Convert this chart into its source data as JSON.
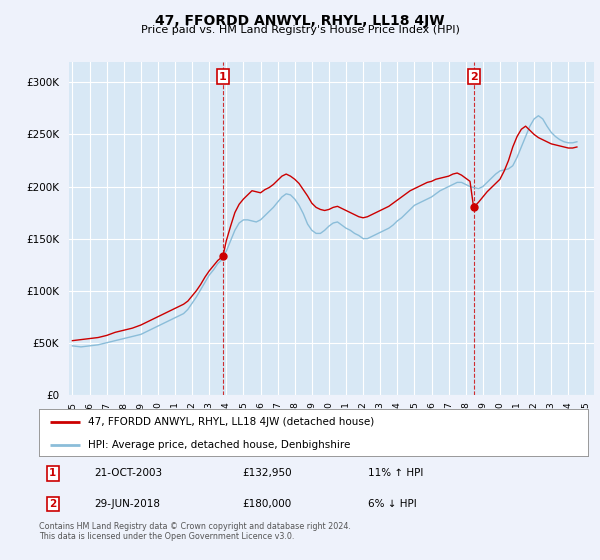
{
  "title": "47, FFORDD ANWYL, RHYL, LL18 4JW",
  "subtitle": "Price paid vs. HM Land Registry's House Price Index (HPI)",
  "background_color": "#eef2fb",
  "plot_bg_color": "#d8e8f5",
  "grid_color": "#ffffff",
  "legend_entry1": "47, FFORDD ANWYL, RHYL, LL18 4JW (detached house)",
  "legend_entry2": "HPI: Average price, detached house, Denbighshire",
  "line1_color": "#cc0000",
  "line2_color": "#8bbdd9",
  "sale1_x": 2003.8,
  "sale1_y": 132950,
  "sale1_date_str": "21-OCT-2003",
  "sale1_price_str": "£132,950",
  "sale1_hpi_diff": "11% ↑ HPI",
  "sale2_x": 2018.46,
  "sale2_y": 180000,
  "sale2_date_str": "29-JUN-2018",
  "sale2_price_str": "£180,000",
  "sale2_hpi_diff": "6% ↓ HPI",
  "vline_color": "#cc0000",
  "annotation_box_color": "#cc0000",
  "ylim": [
    0,
    320000
  ],
  "yticks": [
    0,
    50000,
    100000,
    150000,
    200000,
    250000,
    300000
  ],
  "xlim_start": 1994.8,
  "xlim_end": 2025.5,
  "footer": "Contains HM Land Registry data © Crown copyright and database right 2024.\nThis data is licensed under the Open Government Licence v3.0.",
  "hpi_years": [
    1995.0,
    1995.25,
    1995.5,
    1995.75,
    1996.0,
    1996.25,
    1996.5,
    1996.75,
    1997.0,
    1997.25,
    1997.5,
    1997.75,
    1998.0,
    1998.25,
    1998.5,
    1998.75,
    1999.0,
    1999.25,
    1999.5,
    1999.75,
    2000.0,
    2000.25,
    2000.5,
    2000.75,
    2001.0,
    2001.25,
    2001.5,
    2001.75,
    2002.0,
    2002.25,
    2002.5,
    2002.75,
    2003.0,
    2003.25,
    2003.5,
    2003.75,
    2004.0,
    2004.25,
    2004.5,
    2004.75,
    2005.0,
    2005.25,
    2005.5,
    2005.75,
    2006.0,
    2006.25,
    2006.5,
    2006.75,
    2007.0,
    2007.25,
    2007.5,
    2007.75,
    2008.0,
    2008.25,
    2008.5,
    2008.75,
    2009.0,
    2009.25,
    2009.5,
    2009.75,
    2010.0,
    2010.25,
    2010.5,
    2010.75,
    2011.0,
    2011.25,
    2011.5,
    2011.75,
    2012.0,
    2012.25,
    2012.5,
    2012.75,
    2013.0,
    2013.25,
    2013.5,
    2013.75,
    2014.0,
    2014.25,
    2014.5,
    2014.75,
    2015.0,
    2015.25,
    2015.5,
    2015.75,
    2016.0,
    2016.25,
    2016.5,
    2016.75,
    2017.0,
    2017.25,
    2017.5,
    2017.75,
    2018.0,
    2018.25,
    2018.5,
    2018.75,
    2019.0,
    2019.25,
    2019.5,
    2019.75,
    2020.0,
    2020.25,
    2020.5,
    2020.75,
    2021.0,
    2021.25,
    2021.5,
    2021.75,
    2022.0,
    2022.25,
    2022.5,
    2022.75,
    2023.0,
    2023.25,
    2023.5,
    2023.75,
    2024.0,
    2024.25,
    2024.5
  ],
  "hpi_values": [
    47000,
    46500,
    46000,
    46500,
    47000,
    47500,
    48000,
    49000,
    50000,
    51000,
    52000,
    53000,
    54000,
    55000,
    56000,
    57000,
    58000,
    60000,
    62000,
    64000,
    66000,
    68000,
    70000,
    72000,
    74000,
    76000,
    78000,
    82000,
    88000,
    94000,
    101000,
    108000,
    115000,
    120000,
    126000,
    130000,
    138000,
    148000,
    158000,
    165000,
    168000,
    168000,
    167000,
    166000,
    168000,
    172000,
    176000,
    180000,
    185000,
    190000,
    193000,
    192000,
    188000,
    182000,
    174000,
    164000,
    158000,
    155000,
    155000,
    158000,
    162000,
    165000,
    166000,
    163000,
    160000,
    158000,
    155000,
    153000,
    150000,
    150000,
    152000,
    154000,
    156000,
    158000,
    160000,
    163000,
    167000,
    170000,
    174000,
    178000,
    182000,
    184000,
    186000,
    188000,
    190000,
    193000,
    196000,
    198000,
    200000,
    202000,
    204000,
    204000,
    202000,
    200000,
    199000,
    198000,
    200000,
    204000,
    208000,
    212000,
    215000,
    216000,
    217000,
    220000,
    228000,
    238000,
    248000,
    258000,
    265000,
    268000,
    265000,
    258000,
    252000,
    248000,
    245000,
    243000,
    242000,
    242000,
    243000
  ],
  "price_years": [
    1995.0,
    1995.25,
    1995.5,
    1995.75,
    1996.0,
    1996.25,
    1996.5,
    1996.75,
    1997.0,
    1997.25,
    1997.5,
    1997.75,
    1998.0,
    1998.25,
    1998.5,
    1998.75,
    1999.0,
    1999.25,
    1999.5,
    1999.75,
    2000.0,
    2000.25,
    2000.5,
    2000.75,
    2001.0,
    2001.25,
    2001.5,
    2001.75,
    2002.0,
    2002.25,
    2002.5,
    2002.75,
    2003.0,
    2003.25,
    2003.5,
    2003.8,
    2004.0,
    2004.25,
    2004.5,
    2004.75,
    2005.0,
    2005.25,
    2005.5,
    2005.75,
    2006.0,
    2006.25,
    2006.5,
    2006.75,
    2007.0,
    2007.25,
    2007.5,
    2007.75,
    2008.0,
    2008.25,
    2008.5,
    2008.75,
    2009.0,
    2009.25,
    2009.5,
    2009.75,
    2010.0,
    2010.25,
    2010.5,
    2010.75,
    2011.0,
    2011.25,
    2011.5,
    2011.75,
    2012.0,
    2012.25,
    2012.5,
    2012.75,
    2013.0,
    2013.25,
    2013.5,
    2013.75,
    2014.0,
    2014.25,
    2014.5,
    2014.75,
    2015.0,
    2015.25,
    2015.5,
    2015.75,
    2016.0,
    2016.25,
    2016.5,
    2016.75,
    2017.0,
    2017.25,
    2017.5,
    2017.75,
    2018.0,
    2018.25,
    2018.46,
    2018.75,
    2019.0,
    2019.25,
    2019.5,
    2019.75,
    2020.0,
    2020.25,
    2020.5,
    2020.75,
    2021.0,
    2021.25,
    2021.5,
    2021.75,
    2022.0,
    2022.25,
    2022.5,
    2022.75,
    2023.0,
    2023.25,
    2023.5,
    2023.75,
    2024.0,
    2024.25,
    2024.5
  ],
  "price_values": [
    52000,
    52500,
    53000,
    53500,
    54000,
    54500,
    55000,
    56000,
    57000,
    58500,
    60000,
    61000,
    62000,
    63000,
    64000,
    65500,
    67000,
    69000,
    71000,
    73000,
    75000,
    77000,
    79000,
    81000,
    83000,
    85000,
    87000,
    90000,
    95000,
    100000,
    106000,
    113000,
    119000,
    124000,
    129000,
    132950,
    148000,
    162000,
    175000,
    183000,
    188000,
    192000,
    196000,
    195000,
    194000,
    197000,
    199000,
    202000,
    206000,
    210000,
    212000,
    210000,
    207000,
    203000,
    197000,
    191000,
    184000,
    180000,
    178000,
    177000,
    178000,
    180000,
    181000,
    179000,
    177000,
    175000,
    173000,
    171000,
    170000,
    171000,
    173000,
    175000,
    177000,
    179000,
    181000,
    184000,
    187000,
    190000,
    193000,
    196000,
    198000,
    200000,
    202000,
    204000,
    205000,
    207000,
    208000,
    209000,
    210000,
    212000,
    213000,
    211000,
    208000,
    205000,
    180000,
    185000,
    190000,
    195000,
    199000,
    203000,
    207000,
    215000,
    225000,
    238000,
    248000,
    255000,
    258000,
    254000,
    250000,
    247000,
    245000,
    243000,
    241000,
    240000,
    239000,
    238000,
    237000,
    237000,
    238000
  ]
}
